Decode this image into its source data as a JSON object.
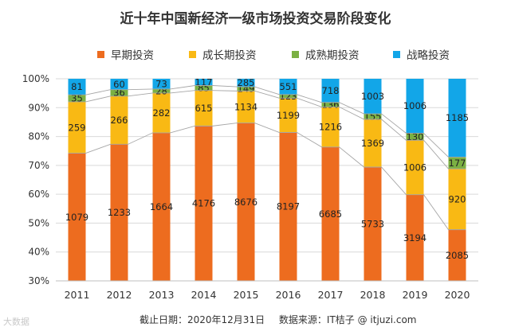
{
  "header": {
    "title": "近十年中国新经济一级市场投资交易阶段变化"
  },
  "footer": {
    "cutoff": "截止日期：2020年12月31日",
    "source": "数据来源：IT桔子 @ itjuzi.com"
  },
  "watermark": {
    "text": "大数据"
  },
  "colors": {
    "early": "#ED6C1F",
    "growth": "#F9B914",
    "mature": "#7BB043",
    "strategic": "#12A6E8",
    "grid": "#d9d9d9",
    "axis": "#333333"
  },
  "chart_data": {
    "type": "bar",
    "stacked": "percent",
    "title": "近十年中国新经济一级市场投资交易阶段变化",
    "categories": [
      "2011",
      "2012",
      "2013",
      "2014",
      "2015",
      "2016",
      "2017",
      "2018",
      "2019",
      "2020"
    ],
    "series": [
      {
        "name": "早期投资",
        "color": "#ED6C1F",
        "values": [
          1079,
          1233,
          1664,
          4176,
          8676,
          8197,
          6685,
          5733,
          3194,
          2085
        ]
      },
      {
        "name": "成长期投资",
        "color": "#F9B914",
        "values": [
          259,
          266,
          282,
          615,
          1134,
          1199,
          1216,
          1369,
          1006,
          920
        ]
      },
      {
        "name": "成熟期投资",
        "color": "#7BB043",
        "values": [
          35,
          36,
          28,
          85,
          149,
          123,
          136,
          155,
          130,
          177
        ]
      },
      {
        "name": "战略投资",
        "color": "#12A6E8",
        "values": [
          81,
          60,
          73,
          117,
          285,
          551,
          718,
          1003,
          1006,
          1185
        ]
      }
    ],
    "ylim": [
      0.3,
      1.0
    ],
    "yticks": [
      "30%",
      "40%",
      "50%",
      "60%",
      "70%",
      "80%",
      "90%",
      "100%"
    ],
    "legend_position": "top",
    "grid": true,
    "series_lines": true
  }
}
